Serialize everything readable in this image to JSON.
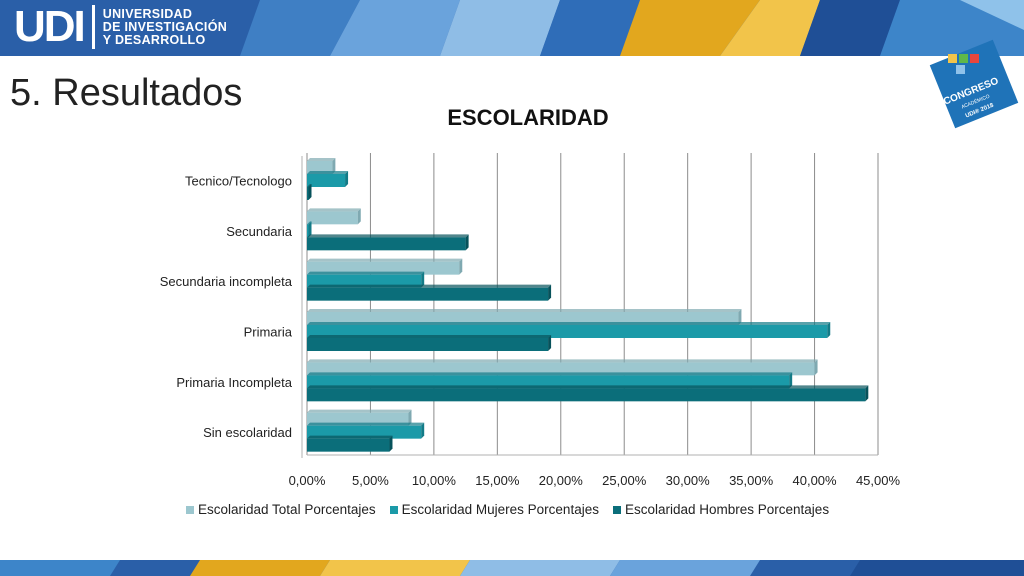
{
  "header": {
    "logo_mark": "UDI",
    "logo_lines": [
      "UNIVERSIDAD",
      "DE INVESTIGACIÓN",
      "Y DESARROLLO"
    ],
    "badge_text": "CONGRESO",
    "badge_subtext": "ACADÉMICO",
    "badge_year": "UDI® 2018"
  },
  "slide": {
    "title": "5. Resultados"
  },
  "colors": {
    "total": "#9cc7cf",
    "mujeres": "#1b9aa8",
    "hombres": "#0b6e7a",
    "grid": "#8c8c8c"
  },
  "chart_data": {
    "type": "bar",
    "orientation": "horizontal",
    "title": "ESCOLARIDAD",
    "categories": [
      "Tecnico/Tecnologo",
      "Secundaria",
      "Secundaria incompleta",
      "Primaria",
      "Primaria Incompleta",
      "Sin escolaridad"
    ],
    "series": [
      {
        "name": "Escolaridad Total Porcentajes",
        "values": [
          2.0,
          4.0,
          12.0,
          34.0,
          40.0,
          8.0
        ]
      },
      {
        "name": "Escolaridad Mujeres  Porcentajes",
        "values": [
          3.0,
          0.0,
          9.0,
          41.0,
          38.0,
          9.0
        ]
      },
      {
        "name": "Escolaridad Hombres Porcentajes",
        "values": [
          0.0,
          12.5,
          19.0,
          19.0,
          44.0,
          6.5
        ]
      }
    ],
    "xlim": [
      0,
      45
    ],
    "xticks": [
      "0,00%",
      "5,00%",
      "10,00%",
      "15,00%",
      "20,00%",
      "25,00%",
      "30,00%",
      "35,00%",
      "40,00%",
      "45,00%"
    ],
    "grid": true,
    "legend_position": "bottom"
  }
}
